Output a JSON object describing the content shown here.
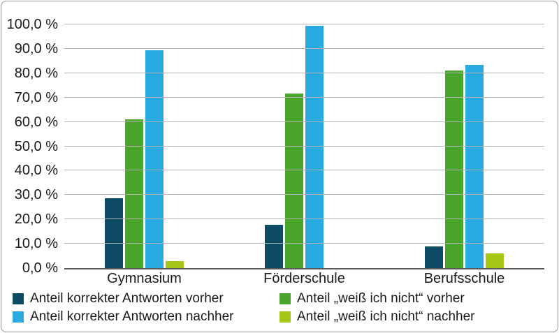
{
  "chart_data": {
    "type": "bar",
    "title": "",
    "xlabel": "",
    "ylabel": "",
    "categories": [
      "Gymnasium",
      "Förderschule",
      "Berufsschule"
    ],
    "series": [
      {
        "name": "Anteil korrekter Antworten vorher",
        "color": "#0d4a63",
        "values": [
          28.6,
          17.9,
          8.9
        ]
      },
      {
        "name": "Anteil „weiß ich nicht“ vorher",
        "color": "#4aa52c",
        "values": [
          61.0,
          71.5,
          81.2
        ]
      },
      {
        "name": "Anteil korrekter Antworten nachher",
        "color": "#29abe2",
        "values": [
          89.5,
          99.3,
          83.4
        ]
      },
      {
        "name": "Anteil „weiß ich nicht“ nachher",
        "color": "#a5c617",
        "values": [
          3.0,
          0.0,
          6.1
        ]
      }
    ],
    "ylim": [
      0,
      100
    ],
    "ytick_step": 10,
    "yticks": [
      "0,0 %",
      "10,0 %",
      "20,0 %",
      "30,0 %",
      "40,0 %",
      "50,0 %",
      "60,0 %",
      "70,0 %",
      "80,0 %",
      "90,0 %",
      "100,0 %"
    ],
    "grid": "horizontal",
    "gridline_color": "#b3b3b3",
    "axis_color": "#595959",
    "legend_position": "bottom, two columns"
  },
  "legend": {
    "items": [
      {
        "label": "Anteil korrekter Antworten vorher",
        "color": "#0d4a63"
      },
      {
        "label": "Anteil korrekter Antworten nachher",
        "color": "#29abe2"
      },
      {
        "label": "Anteil „weiß ich nicht“ vorher",
        "color": "#4aa52c"
      },
      {
        "label": "Anteil „weiß ich nicht“ nachher",
        "color": "#a5c617"
      }
    ]
  }
}
